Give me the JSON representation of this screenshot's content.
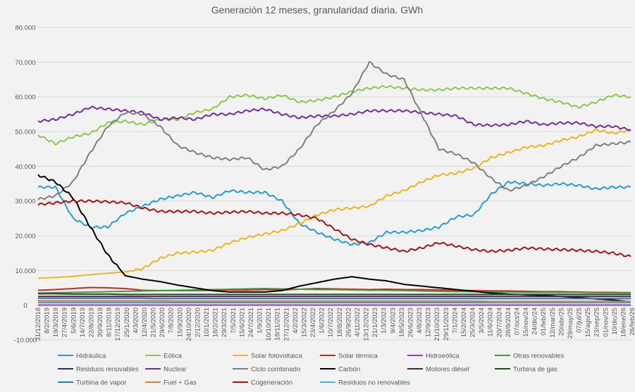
{
  "chart_data": {
    "type": "line",
    "title": "Generación 12 meses, granularidad diaria. GWh",
    "xlabel": "",
    "ylabel": "",
    "ylim": [
      -10000,
      80000
    ],
    "yticks": [
      -10000,
      0,
      10000,
      20000,
      30000,
      40000,
      50000,
      60000,
      70000,
      80000
    ],
    "ytick_labels": [
      "-10.000",
      "0",
      "10.000",
      "20.000",
      "30.000",
      "40.000",
      "50.000",
      "60.000",
      "70.000",
      "80.000"
    ],
    "xtick_labels": [
      "31/12/2018",
      "8/2/2019",
      "19/3/2019",
      "27/4/2019",
      "5/6/2019",
      "14/7/2019",
      "22/8/2019",
      "30/9/2019",
      "8/11/2019",
      "17/12/2019",
      "25/1/2020",
      "4/3/2020",
      "12/4/2020",
      "21/5/2020",
      "29/6/2020",
      "7/8/2020",
      "15/9/2020",
      "24/10/2020",
      "2/12/2020",
      "10/1/2021",
      "18/2/2021",
      "29/3/2021",
      "7/5/2021",
      "15/6/2021",
      "24/7/2021",
      "1/9/2021",
      "10/10/2021",
      "18/11/2021",
      "27/12/2021",
      "4/2/2022",
      "15/3/2022",
      "23/4/2022",
      "1/6/2022",
      "10/7/2022",
      "18/8/2022",
      "26/9/2022",
      "4/11/2022",
      "13/12/2022",
      "21/1/2023",
      "1/3/2023",
      "9/4/2023",
      "18/5/2023",
      "26/6/2023",
      "4/8/2023",
      "12/9/2023",
      "21/10/2023",
      "29/11/2023",
      "7/1/2024",
      "15/2/2024",
      "25/3/2024",
      "3/5/2024",
      "11/6/2024",
      "20/7/2024",
      "28/8/2024",
      "07/oct/24",
      "15/nov/24",
      "24/dic/24",
      "01/feb/25",
      "12/mar/25",
      "20/abr/25",
      "29/may/25",
      "07/jul/25",
      "15/ago/25",
      "23/sep/25",
      "01/nov/25",
      "10/dic/25",
      "18/ene/26",
      "26/feb/26"
    ],
    "x": [
      "31/12/2018",
      "19/3/2019",
      "5/6/2019",
      "22/8/2019",
      "8/11/2019",
      "25/1/2020",
      "12/4/2020",
      "29/6/2020",
      "15/9/2020",
      "2/12/2020",
      "18/2/2021",
      "7/5/2021",
      "24/7/2021",
      "10/10/2021",
      "27/12/2021",
      "15/3/2022",
      "1/6/2022",
      "18/8/2022",
      "4/11/2022",
      "21/1/2023",
      "9/4/2023",
      "26/6/2023",
      "12/9/2023",
      "29/11/2023",
      "15/2/2024",
      "3/5/2024",
      "20/7/2024",
      "07/oct/24",
      "24/dic/24",
      "12/mar/25",
      "29/may/25",
      "15/ago/25",
      "01/nov/25",
      "18/ene/26",
      "26/feb/26"
    ],
    "legend_position": "bottom",
    "grid": true,
    "series": [
      {
        "name": "Hidráulica",
        "color": "#1f9fd6",
        "values": [
          34000,
          34000,
          25000,
          22500,
          22500,
          26500,
          28500,
          30500,
          31500,
          32500,
          31000,
          33000,
          32500,
          32500,
          30000,
          23500,
          21000,
          19000,
          17500,
          18000,
          21000,
          21000,
          21500,
          22500,
          25500,
          26000,
          32000,
          35500,
          35000,
          34500,
          35000,
          34500,
          33500,
          34000,
          34000
        ]
      },
      {
        "name": "Eólica",
        "color": "#8cc84b",
        "values": [
          49000,
          46500,
          48500,
          49500,
          52500,
          53000,
          52000,
          53500,
          53500,
          55500,
          56500,
          60000,
          60500,
          59500,
          60500,
          58500,
          59000,
          60000,
          61500,
          62500,
          63000,
          62500,
          62000,
          62000,
          62500,
          62500,
          62500,
          62500,
          61000,
          59500,
          58500,
          57000,
          58500,
          60500,
          60000
        ]
      },
      {
        "name": "Solar fotovoltaica",
        "color": "#f0b41c",
        "values": [
          7800,
          8000,
          8300,
          8800,
          9200,
          9600,
          10500,
          13500,
          15000,
          15300,
          15800,
          18000,
          19500,
          20500,
          21500,
          23500,
          26000,
          27500,
          28000,
          28500,
          31500,
          33000,
          35500,
          37500,
          38000,
          39500,
          42500,
          44000,
          45500,
          46000,
          47500,
          48500,
          50500,
          49500,
          50500
        ]
      },
      {
        "name": "Solar térmica",
        "color": "#d72020",
        "values": [
          4300,
          4500,
          4800,
          5100,
          5000,
          4800,
          4300,
          4200,
          4200,
          4200,
          4300,
          4400,
          4400,
          4500,
          4400,
          4600,
          4800,
          4700,
          4600,
          4500,
          4600,
          4500,
          4500,
          4400,
          4300,
          4200,
          4100,
          4100,
          4000,
          3900,
          3900,
          3800,
          3700,
          3700,
          3600
        ]
      },
      {
        "name": "Hidroeólica",
        "color": "#9b3aa6",
        "values": [
          30,
          30,
          30,
          30,
          30,
          30,
          30,
          30,
          30,
          30,
          30,
          30,
          30,
          30,
          30,
          30,
          30,
          30,
          30,
          30,
          30,
          30,
          30,
          30,
          30,
          30,
          30,
          30,
          30,
          30,
          30,
          30,
          30,
          30,
          30
        ]
      },
      {
        "name": "Otras renovables",
        "color": "#3c9c35",
        "values": [
          3500,
          3600,
          3700,
          3800,
          3900,
          4000,
          4100,
          4200,
          4300,
          4400,
          4500,
          4600,
          4700,
          4800,
          4700,
          4600,
          4500,
          4500,
          4400,
          4300,
          4300,
          4200,
          4100,
          4000,
          3900,
          3900,
          3800,
          3800,
          3700,
          3700,
          3700,
          3700,
          3600,
          3600,
          3600
        ]
      },
      {
        "name": "Residuos renovables",
        "color": "#1a3a6e",
        "values": [
          800,
          800,
          800,
          800,
          800,
          800,
          800,
          800,
          800,
          800,
          800,
          800,
          800,
          800,
          800,
          800,
          800,
          800,
          800,
          800,
          800,
          800,
          800,
          800,
          800,
          800,
          800,
          800,
          800,
          800,
          800,
          800,
          800,
          800,
          800
        ]
      },
      {
        "name": "Nuclear",
        "color": "#7a2aa0",
        "values": [
          53000,
          53500,
          55000,
          57000,
          56500,
          56000,
          55500,
          53500,
          54000,
          53500,
          55000,
          55000,
          56000,
          56500,
          55000,
          54000,
          54500,
          54500,
          55000,
          56000,
          56000,
          56000,
          55500,
          55000,
          54500,
          52000,
          51800,
          52000,
          53000,
          52000,
          52500,
          52500,
          51500,
          51500,
          50500
        ]
      },
      {
        "name": "Ciclo combinado",
        "color": "#7f7f7f",
        "values": [
          30500,
          31500,
          35500,
          44000,
          51500,
          55500,
          55000,
          51500,
          46000,
          44000,
          42500,
          42000,
          42500,
          39000,
          40000,
          45000,
          52000,
          56000,
          61000,
          70000,
          66500,
          65000,
          55000,
          45000,
          43500,
          41000,
          36500,
          33000,
          34500,
          37000,
          40000,
          42500,
          46000,
          46500,
          47000
        ]
      },
      {
        "name": "Carbón",
        "color": "#000000",
        "values": [
          37500,
          35500,
          31000,
          22500,
          14500,
          8500,
          7500,
          6800,
          5800,
          5000,
          4200,
          3800,
          3800,
          3800,
          4200,
          5500,
          6500,
          7500,
          8200,
          7500,
          7000,
          6000,
          5500,
          5000,
          4500,
          4000,
          3500,
          3200,
          3000,
          2800,
          2500,
          2200,
          1800,
          1500,
          1000
        ]
      },
      {
        "name": "Motores diésel",
        "color": "#5a1a5a",
        "values": [
          2500,
          2500,
          2500,
          2500,
          2500,
          2500,
          2500,
          2500,
          2500,
          2500,
          2500,
          2500,
          2500,
          2500,
          2500,
          2500,
          2500,
          2500,
          2500,
          2500,
          2500,
          2500,
          2500,
          2500,
          2500,
          2500,
          2500,
          2500,
          2500,
          2500,
          2500,
          2500,
          2500,
          2500,
          2500
        ]
      },
      {
        "name": "Turbina de gas",
        "color": "#1e4d1e",
        "values": [
          3300,
          3300,
          3200,
          3200,
          3200,
          3100,
          3100,
          3100,
          3100,
          3100,
          3100,
          3100,
          3100,
          3100,
          3100,
          3100,
          3100,
          3100,
          3100,
          3100,
          3100,
          3100,
          3100,
          3100,
          3100,
          3100,
          3100,
          3100,
          3100,
          3100,
          3100,
          3100,
          3100,
          3100,
          3100
        ]
      },
      {
        "name": "Turbina de vapor",
        "color": "#2a7ab0",
        "values": [
          2000,
          2000,
          2000,
          2000,
          2000,
          2000,
          2000,
          1900,
          1900,
          1900,
          1900,
          1900,
          1900,
          1900,
          1900,
          1900,
          1900,
          1900,
          1900,
          1900,
          1900,
          1900,
          1900,
          1900,
          1900,
          1900,
          1900,
          1900,
          1900,
          1900,
          1900,
          1900,
          1900,
          1900,
          1900
        ]
      },
      {
        "name": "Fuel + Gas",
        "color": "#e07b39",
        "values": [
          1300,
          1300,
          1300,
          1300,
          1300,
          1300,
          1300,
          1300,
          1200,
          1200,
          1200,
          1200,
          1200,
          1200,
          1200,
          1200,
          1200,
          1200,
          1200,
          1200,
          1200,
          1200,
          1200,
          1200,
          1200,
          1200,
          1100,
          1100,
          1100,
          1100,
          1100,
          1100,
          1100,
          1100,
          1100
        ]
      },
      {
        "name": "Cogeneración",
        "color": "#b01010",
        "values": [
          29000,
          29500,
          30000,
          30000,
          29800,
          29500,
          28000,
          27000,
          27000,
          27000,
          26500,
          26800,
          27000,
          26500,
          26500,
          26000,
          25000,
          22000,
          19000,
          17500,
          16500,
          15500,
          16500,
          18000,
          17000,
          16000,
          15500,
          15800,
          16500,
          16200,
          16000,
          15800,
          15500,
          15000,
          14000
        ]
      },
      {
        "name": "Residuos no renovables",
        "color": "#3bb8e0",
        "values": [
          700,
          700,
          700,
          700,
          700,
          700,
          700,
          700,
          700,
          700,
          700,
          700,
          700,
          700,
          700,
          700,
          700,
          700,
          700,
          700,
          700,
          700,
          700,
          700,
          700,
          700,
          700,
          700,
          700,
          700,
          700,
          700,
          700,
          700,
          700
        ]
      }
    ]
  }
}
